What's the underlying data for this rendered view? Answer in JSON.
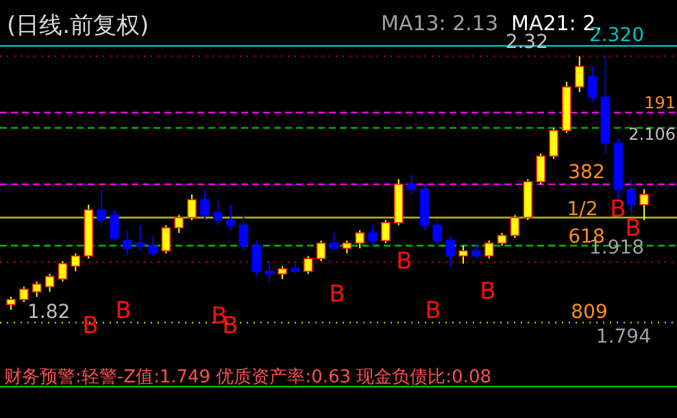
{
  "chart_data": {
    "type": "candlestick",
    "title": "(日线.前复权)",
    "categories": [
      null,
      null,
      null,
      null,
      null,
      null,
      null,
      null,
      null,
      null,
      null,
      null,
      null,
      null,
      null,
      null,
      null,
      null,
      null,
      null,
      null,
      null,
      null,
      null,
      null,
      null,
      null,
      null,
      null,
      null,
      null,
      null,
      null,
      null,
      null,
      null,
      null,
      null,
      null,
      null,
      null,
      null,
      null,
      null,
      null,
      null,
      null,
      null,
      null,
      null
    ],
    "ohlc": [
      [
        1.835,
        1.85,
        1.825,
        1.845
      ],
      [
        1.845,
        1.87,
        1.84,
        1.865
      ],
      [
        1.86,
        1.88,
        1.85,
        1.875
      ],
      [
        1.87,
        1.895,
        1.86,
        1.89
      ],
      [
        1.885,
        1.92,
        1.88,
        1.915
      ],
      [
        1.91,
        1.935,
        1.9,
        1.93
      ],
      [
        1.93,
        2.03,
        1.925,
        2.02
      ],
      [
        2.02,
        2.06,
        1.99,
        2.0
      ],
      [
        2.01,
        2.02,
        1.96,
        1.965
      ],
      [
        1.96,
        1.98,
        1.93,
        1.945
      ],
      [
        1.955,
        1.99,
        1.94,
        1.95
      ],
      [
        1.95,
        1.97,
        1.93,
        1.935
      ],
      [
        1.94,
        1.99,
        1.935,
        1.985
      ],
      [
        1.985,
        2.01,
        1.975,
        2.005
      ],
      [
        2.005,
        2.05,
        2.0,
        2.04
      ],
      [
        2.04,
        2.06,
        2.0,
        2.01
      ],
      [
        2.015,
        2.04,
        1.99,
        2.0
      ],
      [
        2.0,
        2.03,
        1.98,
        1.99
      ],
      [
        1.99,
        2.01,
        1.94,
        1.95
      ],
      [
        1.95,
        1.96,
        1.89,
        1.9
      ],
      [
        1.9,
        1.92,
        1.88,
        1.895
      ],
      [
        1.895,
        1.91,
        1.885,
        1.905
      ],
      [
        1.905,
        1.915,
        1.895,
        1.9
      ],
      [
        1.9,
        1.93,
        1.895,
        1.925
      ],
      [
        1.925,
        1.96,
        1.92,
        1.955
      ],
      [
        1.955,
        1.975,
        1.94,
        1.945
      ],
      [
        1.945,
        1.96,
        1.935,
        1.955
      ],
      [
        1.955,
        1.98,
        1.945,
        1.975
      ],
      [
        1.975,
        1.99,
        1.95,
        1.96
      ],
      [
        1.96,
        2.0,
        1.955,
        1.995
      ],
      [
        1.995,
        2.08,
        1.99,
        2.07
      ],
      [
        2.07,
        2.09,
        2.05,
        2.06
      ],
      [
        2.06,
        2.07,
        1.98,
        1.99
      ],
      [
        1.99,
        2.0,
        1.95,
        1.96
      ],
      [
        1.96,
        1.97,
        1.91,
        1.93
      ],
      [
        1.93,
        1.95,
        1.915,
        1.94
      ],
      [
        1.94,
        1.955,
        1.925,
        1.93
      ],
      [
        1.93,
        1.96,
        1.925,
        1.955
      ],
      [
        1.955,
        1.975,
        1.95,
        1.97
      ],
      [
        1.97,
        2.01,
        1.965,
        2.005
      ],
      [
        2.005,
        2.08,
        2.0,
        2.075
      ],
      [
        2.075,
        2.13,
        2.07,
        2.125
      ],
      [
        2.125,
        2.18,
        2.12,
        2.175
      ],
      [
        2.175,
        2.27,
        2.17,
        2.26
      ],
      [
        2.26,
        2.32,
        2.25,
        2.3
      ],
      [
        2.28,
        2.3,
        2.23,
        2.24
      ],
      [
        2.24,
        2.32,
        2.13,
        2.15
      ],
      [
        2.15,
        2.16,
        2.04,
        2.06
      ],
      [
        2.06,
        2.08,
        2.01,
        2.03
      ],
      [
        2.03,
        2.06,
        2.0,
        2.05
      ]
    ],
    "colors": [
      "#ffff00",
      "#ffff00",
      "#ffff00",
      "#ffff00",
      "#ffff00",
      "#ffff00",
      "#ffff00",
      "#0000ff",
      "#0000ff",
      "#0000ff",
      "#0000ff",
      "#0000ff",
      "#ffff00",
      "#ffff00",
      "#ffff00",
      "#0000ff",
      "#0000ff",
      "#0000ff",
      "#0000ff",
      "#0000ff",
      "#0000ff",
      "#ffff00",
      "#0000ff",
      "#ffff00",
      "#ffff00",
      "#0000ff",
      "#ffff00",
      "#ffff00",
      "#0000ff",
      "#ffff00",
      "#ffff00",
      "#0000ff",
      "#0000ff",
      "#0000ff",
      "#0000ff",
      "#ffff00",
      "#0000ff",
      "#ffff00",
      "#ffff00",
      "#ffff00",
      "#ffff00",
      "#ffff00",
      "#ffff00",
      "#ffff00",
      "#ffff00",
      "#0000ff",
      "#0000ff",
      "#0000ff",
      "#0000ff",
      "#ffff00"
    ],
    "ref_lines": [
      {
        "axis": "y",
        "value": 2.34,
        "label": null,
        "color": "#00c0c0",
        "line_style": "solid"
      },
      {
        "axis": "y",
        "value": 2.32,
        "label": "2.32",
        "color": "#c00000",
        "line_style": "dotted"
      },
      {
        "axis": "y",
        "value": 2.21,
        "label": null,
        "color": "#ff00ff",
        "line_style": "dashed"
      },
      {
        "axis": "y",
        "value": 2.18,
        "label": null,
        "color": "#00c000",
        "line_style": "dashed"
      },
      {
        "axis": "y",
        "value": 2.07,
        "label": null,
        "color": "#ff00ff",
        "line_style": "dashed"
      },
      {
        "axis": "y",
        "value": 2.005,
        "label": null,
        "color": "#c0c000",
        "line_style": "solid"
      },
      {
        "axis": "y",
        "value": 1.95,
        "label": null,
        "color": "#00c000",
        "line_style": "dashed"
      },
      {
        "axis": "y",
        "value": 1.918,
        "label": "1.918",
        "color": "#c00000",
        "line_style": "dotted"
      },
      {
        "axis": "y",
        "value": 1.8,
        "label": null,
        "color": "#c0c000",
        "line_style": "dotted"
      },
      {
        "axis": "y",
        "value": 1.675,
        "label": null,
        "color": "#00c000",
        "line_style": "solid"
      }
    ],
    "annotations": [
      "MA13: 2.13",
      "MA21: 2.",
      "1.82",
      "1.794",
      "B",
      "B",
      "B",
      "B",
      "B",
      "B",
      "B",
      "B",
      "B",
      "B",
      "2.320",
      "191",
      "2.106",
      "382",
      "1/2",
      "618",
      "809",
      "财务预警:轻警-Z值:1.749 优质资产率:0.63 现金负债比:0.08"
    ]
  }
}
